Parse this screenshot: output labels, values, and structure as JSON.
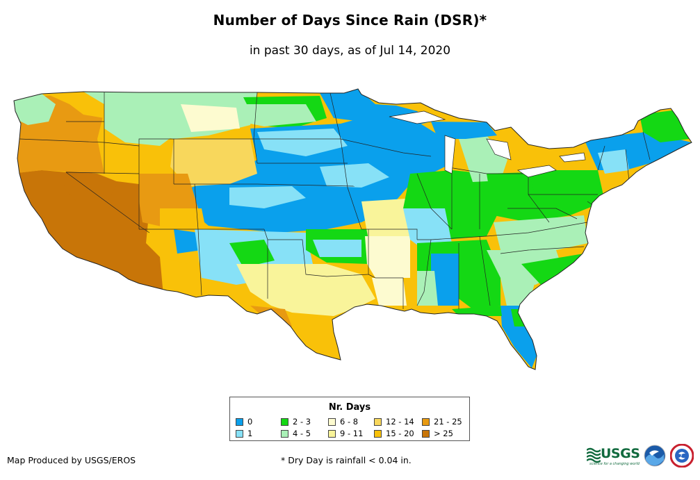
{
  "header": {
    "title": "Number of Days Since Rain (DSR)*",
    "subtitle": "in past 30 days, as of Jul 14, 2020"
  },
  "legend": {
    "title": "Nr. Days",
    "items": [
      {
        "label": "0",
        "color": "#0aa0ec"
      },
      {
        "label": "1",
        "color": "#87e1f7"
      },
      {
        "label": "2 - 3",
        "color": "#14d814"
      },
      {
        "label": "4 - 5",
        "color": "#aaf0b7"
      },
      {
        "label": "6 - 8",
        "color": "#fdfbd0"
      },
      {
        "label": "9 - 11",
        "color": "#f9f49a"
      },
      {
        "label": "12 - 14",
        "color": "#f8d75c"
      },
      {
        "label": "15 - 20",
        "color": "#f9c109"
      },
      {
        "label": "21 - 25",
        "color": "#e89a12"
      },
      {
        "label": "> 25",
        "color": "#c87508"
      }
    ]
  },
  "footer": {
    "credit": "Map Produced by USGS/EROS",
    "footnote": "* Dry Day is rainfall < 0.04 in.",
    "usgs_logo_text": "USGS",
    "usgs_tagline": "science for a changing world"
  }
}
